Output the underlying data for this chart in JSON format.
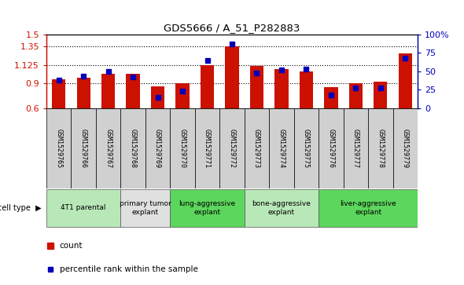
{
  "title": "GDS5666 / A_51_P282883",
  "samples": [
    "GSM1529765",
    "GSM1529766",
    "GSM1529767",
    "GSM1529768",
    "GSM1529769",
    "GSM1529770",
    "GSM1529771",
    "GSM1529772",
    "GSM1529773",
    "GSM1529774",
    "GSM1529775",
    "GSM1529776",
    "GSM1529777",
    "GSM1529778",
    "GSM1529779"
  ],
  "counts": [
    0.955,
    0.975,
    1.02,
    1.02,
    0.865,
    0.9,
    1.125,
    1.35,
    1.11,
    1.075,
    1.05,
    0.855,
    0.9,
    0.92,
    1.27
  ],
  "percentiles": [
    38,
    43,
    50,
    42,
    15,
    23,
    65,
    87,
    48,
    52,
    53,
    18,
    28,
    28,
    68
  ],
  "cell_types": [
    {
      "label": "4T1 parental",
      "start": 0,
      "end": 2,
      "color": "#b8e8b8"
    },
    {
      "label": "primary tumor\nexplant",
      "start": 3,
      "end": 4,
      "color": "#e8e8e8"
    },
    {
      "label": "lung-aggressive\nexplant",
      "start": 5,
      "end": 7,
      "color": "#70d870"
    },
    {
      "label": "bone-aggressive\nexplant",
      "start": 8,
      "end": 10,
      "color": "#b8e8b8"
    },
    {
      "label": "liver-aggressive\nexplant",
      "start": 11,
      "end": 14,
      "color": "#70d870"
    }
  ],
  "ylim_left": [
    0.6,
    1.5
  ],
  "ylim_right": [
    0,
    100
  ],
  "yticks_left": [
    0.6,
    0.9,
    1.125,
    1.35,
    1.5
  ],
  "yticks_right": [
    0,
    25,
    50,
    75,
    100
  ],
  "bar_color": "#cc1100",
  "dot_color": "#0000bb",
  "bar_width": 0.55,
  "background_color": "#ffffff"
}
